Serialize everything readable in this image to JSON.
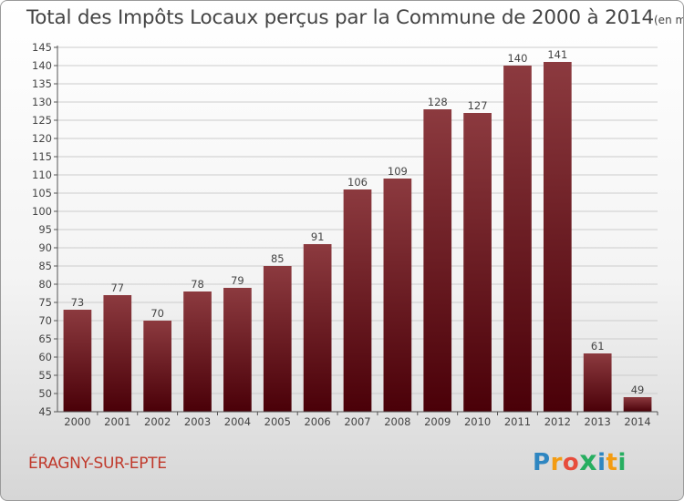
{
  "header": {
    "title": "Total des Impôts Locaux perçus par la Commune de 2000 à 2014",
    "unit": "(en milliers d'€)"
  },
  "footer": {
    "commune": "ÉRAGNY-SUR-EPTE",
    "logo_letters": [
      "P",
      "r",
      "o",
      "x",
      "i",
      "t",
      "i"
    ],
    "logo_colors": [
      "#2e86c1",
      "#f39c12",
      "#e74c3c",
      "#27ae60",
      "#2e86c1",
      "#f39c12",
      "#27ae60"
    ]
  },
  "chart_data": {
    "type": "bar",
    "categories": [
      "2000",
      "2001",
      "2002",
      "2003",
      "2004",
      "2005",
      "2006",
      "2007",
      "2008",
      "2009",
      "2010",
      "2011",
      "2012",
      "2013",
      "2014"
    ],
    "values": [
      73,
      77,
      70,
      78,
      79,
      85,
      91,
      106,
      109,
      128,
      127,
      140,
      141,
      61,
      49
    ],
    "value_labels": [
      "73",
      "77",
      "70",
      "78",
      "79",
      "85",
      "91",
      "106",
      "109",
      "128",
      "127",
      "140",
      "141",
      "61",
      "49"
    ],
    "ylim": [
      45,
      145
    ],
    "yticks": [
      45,
      50,
      55,
      60,
      65,
      70,
      75,
      80,
      85,
      90,
      95,
      100,
      105,
      110,
      115,
      120,
      125,
      130,
      135,
      140,
      145
    ],
    "ytick_labels": [
      "45",
      "50",
      "55",
      "60",
      "65",
      "70",
      "75",
      "80",
      "85",
      "90",
      "95",
      "100",
      "105",
      "110",
      "115",
      "120",
      "125",
      "130",
      "135",
      "140",
      "145"
    ],
    "grid": true,
    "colors": {
      "bar_top": "#8c3a3f",
      "bar_bottom": "#4a0008",
      "label": "#444444",
      "grid": "#cccccc"
    }
  }
}
